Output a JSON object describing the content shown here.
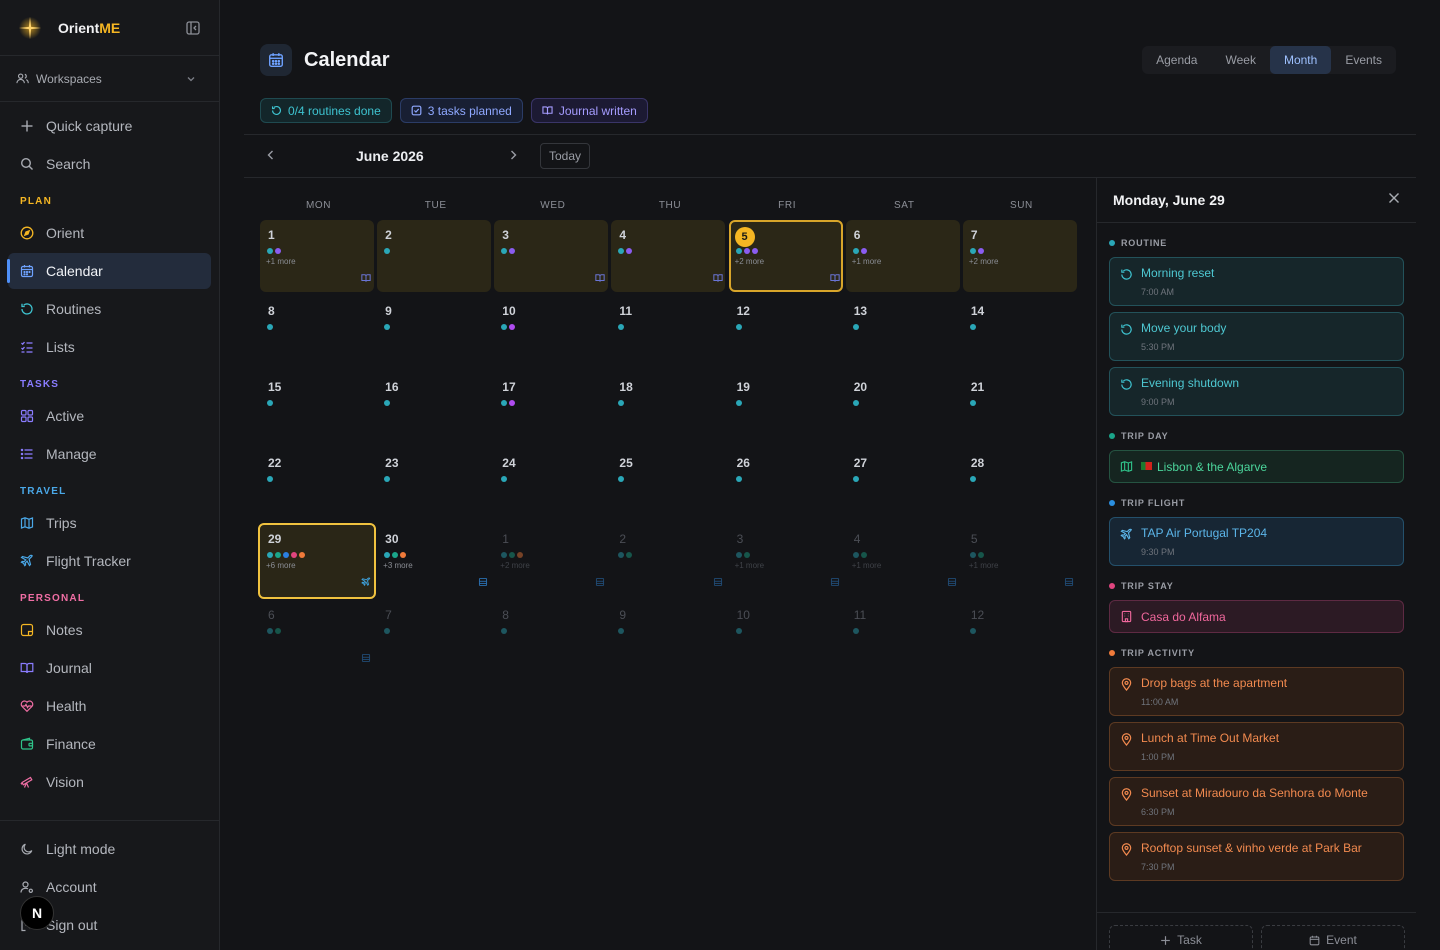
{
  "app": {
    "name_prefix": "Orient",
    "name_suffix": "ME"
  },
  "sidebar": {
    "workspaces_label": "Workspaces",
    "quick_capture": "Quick capture",
    "search": "Search",
    "plan_label": "PLAN",
    "plan_items": [
      "Orient",
      "Calendar",
      "Routines",
      "Lists"
    ],
    "tasks_label": "TASKS",
    "tasks_items": [
      "Active",
      "Manage"
    ],
    "travel_label": "TRAVEL",
    "travel_items": [
      "Trips",
      "Flight Tracker"
    ],
    "personal_label": "PERSONAL",
    "personal_items": [
      "Notes",
      "Journal",
      "Health",
      "Finance",
      "Vision"
    ],
    "bottom_items": [
      "Light mode",
      "Account",
      "Sign out"
    ],
    "badge": "N",
    "colors": {
      "plan": "#f5b623",
      "tasks": "#8a7cff",
      "travel": "#4aa8e8",
      "personal": "#f06ea4",
      "accent": "#4f8ff7"
    }
  },
  "header": {
    "title": "Calendar",
    "views": [
      "Agenda",
      "Week",
      "Month",
      "Events"
    ],
    "active_view": "Month"
  },
  "chips": {
    "routines": "0/4 routines done",
    "tasks": "3 tasks planned",
    "journal": "Journal written"
  },
  "month_nav": {
    "label": "June 2026",
    "today": "Today"
  },
  "calendar": {
    "days_of_week": [
      "MON",
      "TUE",
      "WED",
      "THU",
      "FRI",
      "SAT",
      "SUN"
    ],
    "weeks": [
      [
        {
          "d": "1",
          "dots": [
            "#2aa7b7",
            "#8a5cf0"
          ],
          "more": "+1 more",
          "icon": "book",
          "hl": true
        },
        {
          "d": "2",
          "dots": [
            "#2aa7b7"
          ],
          "more": "",
          "icon": "",
          "hl": true
        },
        {
          "d": "3",
          "dots": [
            "#2aa7b7",
            "#8a5cf0"
          ],
          "more": "",
          "icon": "book",
          "hl": true
        },
        {
          "d": "4",
          "dots": [
            "#2aa7b7",
            "#8a5cf0"
          ],
          "more": "",
          "icon": "book",
          "hl": true
        },
        {
          "d": "5",
          "dots": [
            "#2aa7b7",
            "#8a5cf0",
            "#8a5cf0"
          ],
          "more": "+2 more",
          "icon": "book",
          "hl": true,
          "today": true
        },
        {
          "d": "6",
          "dots": [
            "#2aa7b7",
            "#8a5cf0"
          ],
          "more": "+1 more",
          "icon": "",
          "hl": true
        },
        {
          "d": "7",
          "dots": [
            "#2aa7b7",
            "#8a5cf0"
          ],
          "more": "+2 more",
          "icon": "",
          "hl": true
        }
      ],
      [
        {
          "d": "8",
          "dots": [
            "#2aa7b7"
          ]
        },
        {
          "d": "9",
          "dots": [
            "#2aa7b7"
          ]
        },
        {
          "d": "10",
          "dots": [
            "#2aa7b7",
            "#b04cf0"
          ]
        },
        {
          "d": "11",
          "dots": [
            "#2aa7b7"
          ]
        },
        {
          "d": "12",
          "dots": [
            "#2aa7b7"
          ]
        },
        {
          "d": "13",
          "dots": [
            "#2aa7b7"
          ]
        },
        {
          "d": "14",
          "dots": [
            "#2aa7b7"
          ]
        }
      ],
      [
        {
          "d": "15",
          "dots": [
            "#2aa7b7"
          ]
        },
        {
          "d": "16",
          "dots": [
            "#2aa7b7"
          ]
        },
        {
          "d": "17",
          "dots": [
            "#2aa7b7",
            "#b04cf0"
          ]
        },
        {
          "d": "18",
          "dots": [
            "#2aa7b7"
          ]
        },
        {
          "d": "19",
          "dots": [
            "#2aa7b7"
          ]
        },
        {
          "d": "20",
          "dots": [
            "#2aa7b7"
          ]
        },
        {
          "d": "21",
          "dots": [
            "#2aa7b7"
          ]
        }
      ],
      [
        {
          "d": "22",
          "dots": [
            "#2aa7b7"
          ]
        },
        {
          "d": "23",
          "dots": [
            "#2aa7b7"
          ]
        },
        {
          "d": "24",
          "dots": [
            "#2aa7b7"
          ]
        },
        {
          "d": "25",
          "dots": [
            "#2aa7b7"
          ]
        },
        {
          "d": "26",
          "dots": [
            "#2aa7b7"
          ]
        },
        {
          "d": "27",
          "dots": [
            "#2aa7b7"
          ]
        },
        {
          "d": "28",
          "dots": [
            "#2aa7b7"
          ]
        }
      ],
      [
        {
          "d": "29",
          "dots": [
            "#2aa7b7",
            "#1aa58a",
            "#2b7fe0",
            "#e0457f",
            "#f07a3a"
          ],
          "more": "+6 more",
          "icon": "plane",
          "selected": true
        },
        {
          "d": "30",
          "dots": [
            "#2aa7b7",
            "#1aa58a",
            "#f07a3a"
          ],
          "more": "+3 more",
          "icon": "hotel"
        },
        {
          "d": "1",
          "dots": [
            "#2aa7b7",
            "#1aa58a",
            "#f07a3a"
          ],
          "more": "+2 more",
          "icon": "hotel",
          "muted": true
        },
        {
          "d": "2",
          "dots": [
            "#2aa7b7",
            "#1aa58a"
          ],
          "more": "",
          "icon": "hotel",
          "muted": true
        },
        {
          "d": "3",
          "dots": [
            "#2aa7b7",
            "#1aa58a"
          ],
          "more": "+1 more",
          "icon": "hotel",
          "muted": true
        },
        {
          "d": "4",
          "dots": [
            "#2aa7b7",
            "#1aa58a"
          ],
          "more": "+1 more",
          "icon": "hotel",
          "muted": true
        },
        {
          "d": "5",
          "dots": [
            "#2aa7b7",
            "#1aa58a"
          ],
          "more": "+1 more",
          "icon": "hotel",
          "muted": true
        }
      ],
      [
        {
          "d": "6",
          "dots": [
            "#2aa7b7",
            "#1aa58a"
          ],
          "more": "",
          "icon": "hotel",
          "muted": true
        },
        {
          "d": "7",
          "dots": [
            "#2aa7b7"
          ],
          "muted": true
        },
        {
          "d": "8",
          "dots": [
            "#2aa7b7"
          ],
          "muted": true
        },
        {
          "d": "9",
          "dots": [
            "#2aa7b7"
          ],
          "muted": true
        },
        {
          "d": "10",
          "dots": [
            "#2aa7b7"
          ],
          "muted": true
        },
        {
          "d": "11",
          "dots": [
            "#2aa7b7"
          ],
          "muted": true
        },
        {
          "d": "12",
          "dots": [
            "#2aa7b7"
          ],
          "muted": true
        }
      ]
    ]
  },
  "panel": {
    "title": "Monday, June 29",
    "routine_label": "ROUTINE",
    "routines": [
      {
        "title": "Morning reset",
        "time": "7:00 AM"
      },
      {
        "title": "Move your body",
        "time": "5:30 PM"
      },
      {
        "title": "Evening shutdown",
        "time": "9:00 PM"
      }
    ],
    "trip_day_label": "TRIP DAY",
    "trip_day": "Lisbon & the Algarve",
    "trip_flight_label": "TRIP FLIGHT",
    "flight": {
      "title": "TAP Air Portugal TP204",
      "time": "9:30 PM"
    },
    "trip_stay_label": "TRIP STAY",
    "stay": "Casa do Alfama",
    "trip_activity_label": "TRIP ACTIVITY",
    "activities": [
      {
        "title": "Drop bags at the apartment",
        "time": "11:00 AM"
      },
      {
        "title": "Lunch at Time Out Market",
        "time": "1:00 PM"
      },
      {
        "title": "Sunset at Miradouro da Senhora do Monte",
        "time": "6:30 PM"
      },
      {
        "title": "Rooftop sunset & vinho verde at Park Bar",
        "time": "7:30 PM"
      }
    ],
    "add_task": "Task",
    "add_event": "Event"
  }
}
